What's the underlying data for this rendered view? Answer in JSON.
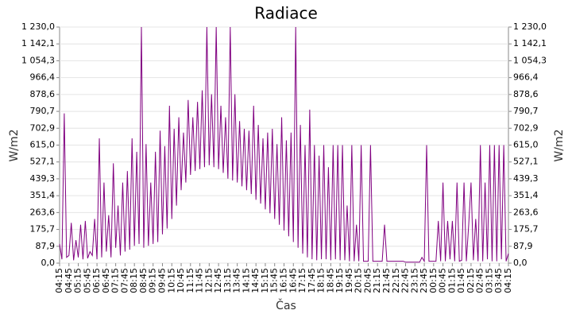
{
  "chart_data": {
    "type": "line",
    "title": "Radiace",
    "x_label": "Čas",
    "y_label": "W/m2",
    "categories": [
      "04:15",
      null,
      null,
      null,
      "04:45",
      null,
      null,
      null,
      "05:15",
      null,
      null,
      null,
      "05:45",
      null,
      null,
      null,
      "06:15",
      null,
      null,
      null,
      "06:45",
      null,
      null,
      null,
      "07:15",
      null,
      null,
      null,
      "07:45",
      null,
      null,
      null,
      "08:15",
      null,
      null,
      null,
      "08:45",
      null,
      null,
      null,
      "09:15",
      null,
      null,
      null,
      "09:45",
      null,
      null,
      null,
      "10:15",
      null,
      null,
      null,
      "10:45",
      null,
      null,
      null,
      "11:15",
      null,
      null,
      null,
      "11:45",
      null,
      null,
      null,
      "12:15",
      null,
      null,
      null,
      "12:45",
      null,
      null,
      null,
      "13:15",
      null,
      null,
      null,
      "13:45",
      null,
      null,
      null,
      "14:15",
      null,
      null,
      null,
      "14:45",
      null,
      null,
      null,
      "15:15",
      null,
      null,
      null,
      "15:45",
      null,
      null,
      null,
      "16:15",
      null,
      null,
      null,
      "16:45",
      null,
      null,
      null,
      "17:15",
      null,
      null,
      null,
      "17:45",
      null,
      null,
      null,
      "18:15",
      null,
      null,
      null,
      "18:45",
      null,
      null,
      null,
      "19:15",
      null,
      null,
      null,
      "19:45",
      null,
      null,
      null,
      "20:15",
      null,
      null,
      null,
      "20:45",
      null,
      null,
      null,
      "21:15",
      null,
      null,
      null,
      "21:45",
      null,
      null,
      null,
      "22:15",
      null,
      null,
      null,
      "22:45",
      null,
      null,
      null,
      "23:15",
      null,
      null,
      null,
      "23:45",
      null,
      null,
      null,
      "00:15",
      null,
      null,
      null,
      "00:45",
      null,
      null,
      null,
      "01:15",
      null,
      null,
      null,
      "01:45",
      null,
      null,
      null,
      "02:15",
      null,
      null,
      null,
      "02:45",
      null,
      null,
      null,
      "03:15",
      null,
      null,
      null,
      "03:45",
      null,
      null,
      null,
      "04:15"
    ],
    "series": [
      {
        "color": "#800080",
        "values": [
          100,
          20,
          780,
          30,
          40,
          210,
          15,
          120,
          30,
          200,
          20,
          220,
          25,
          60,
          40,
          230,
          20,
          650,
          30,
          420,
          60,
          250,
          30,
          520,
          80,
          300,
          40,
          420,
          60,
          480,
          70,
          650,
          90,
          580,
          100,
          1230,
          80,
          620,
          90,
          420,
          100,
          580,
          110,
          690,
          150,
          610,
          180,
          820,
          230,
          700,
          300,
          760,
          380,
          680,
          420,
          850,
          460,
          760,
          480,
          840,
          490,
          900,
          500,
          1230,
          510,
          880,
          500,
          1230,
          490,
          820,
          470,
          760,
          440,
          1230,
          430,
          880,
          420,
          740,
          400,
          700,
          380,
          690,
          360,
          820,
          330,
          720,
          310,
          650,
          280,
          680,
          260,
          700,
          230,
          620,
          200,
          760,
          170,
          640,
          140,
          680,
          110,
          1230,
          80,
          720,
          50,
          615,
          30,
          800,
          20,
          615,
          15,
          560,
          20,
          615,
          20,
          500,
          15,
          615,
          20,
          615,
          15,
          615,
          15,
          300,
          10,
          615,
          10,
          200,
          10,
          615,
          10,
          10,
          10,
          615,
          10,
          10,
          10,
          10,
          10,
          200,
          10,
          10,
          10,
          10,
          10,
          10,
          10,
          10,
          5,
          5,
          5,
          5,
          5,
          5,
          5,
          30,
          10,
          615,
          10,
          10,
          10,
          10,
          220,
          10,
          420,
          10,
          220,
          20,
          220,
          10,
          420,
          10,
          15,
          420,
          10,
          200,
          420,
          15,
          230,
          10,
          615,
          10,
          420,
          20,
          615,
          10,
          615,
          10,
          615,
          20,
          615,
          10,
          50
        ]
      }
    ],
    "ylim": [
      0,
      1230
    ],
    "yticks": [
      {
        "value": 0,
        "label": "0,0"
      },
      {
        "value": 87.9,
        "label": "87,9"
      },
      {
        "value": 175.7,
        "label": "175,7"
      },
      {
        "value": 263.6,
        "label": "263,6"
      },
      {
        "value": 351.4,
        "label": "351,4"
      },
      {
        "value": 439.3,
        "label": "439,3"
      },
      {
        "value": 527.1,
        "label": "527,1"
      },
      {
        "value": 615,
        "label": "615,0"
      },
      {
        "value": 702.9,
        "label": "702,9"
      },
      {
        "value": 790.7,
        "label": "790,7"
      },
      {
        "value": 878.6,
        "label": "878,6"
      },
      {
        "value": 966.4,
        "label": "966,4"
      },
      {
        "value": 1054.3,
        "label": "1 054,3"
      },
      {
        "value": 1142.1,
        "label": "1 142,1"
      },
      {
        "value": 1230,
        "label": "1 230,0"
      }
    ],
    "grid": true
  }
}
